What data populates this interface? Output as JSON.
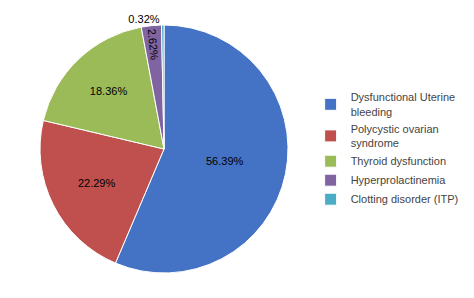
{
  "chart_data": {
    "type": "pie",
    "categories": [
      "Dysfunctional Uterine\nbleeding",
      "Polycystic ovarian\nsyndrome",
      "Thyroid dysfunction",
      "Hyperprolactinemia",
      "Clotting disorder (ITP)"
    ],
    "values": [
      56.39,
      22.29,
      18.36,
      2.62,
      0.32
    ],
    "value_labels": [
      "56.39%",
      "22.29%",
      "18.36%",
      "2.62%",
      "0.32%"
    ],
    "colors": [
      "#4472C4",
      "#C0504D",
      "#9BBB59",
      "#8064A2",
      "#4BACC6"
    ],
    "data_labels": true,
    "legend": "right"
  }
}
